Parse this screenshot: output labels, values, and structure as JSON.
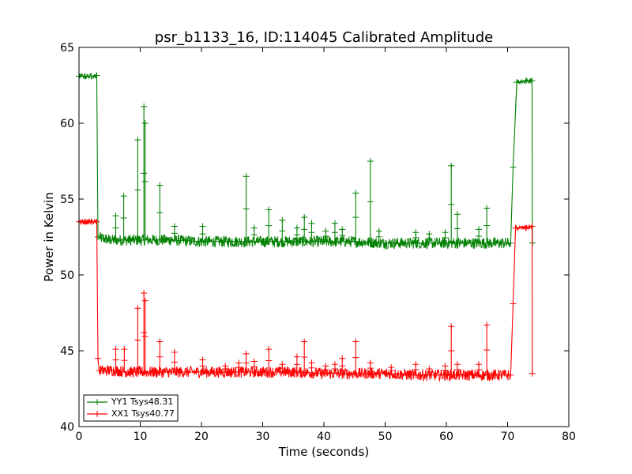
{
  "chart_data": {
    "type": "line",
    "title": "psr_b1133_16, ID:114045 Calibrated Amplitude",
    "xlabel": "Time (seconds)",
    "ylabel": "Power in Kelvin",
    "xlim": [
      0,
      80
    ],
    "ylim": [
      40,
      65
    ],
    "xticks": [
      0,
      10,
      20,
      30,
      40,
      50,
      60,
      70,
      80
    ],
    "yticks": [
      40,
      45,
      50,
      55,
      60,
      65
    ],
    "grid": false,
    "legend": "lower-left",
    "marker": "plus",
    "series": [
      {
        "name": "YY1 Tsys48.31",
        "color": "#008000",
        "x": [
          0,
          1,
          2,
          2.9,
          3.1,
          4,
          5,
          6,
          8,
          10,
          15,
          20,
          25,
          30,
          35,
          40,
          45,
          50,
          55,
          60,
          65,
          68,
          70.5,
          70.9,
          71.5,
          73,
          74,
          74.05
        ],
        "y": [
          63.1,
          63.1,
          63.1,
          63.15,
          52.5,
          52.4,
          52.3,
          52.3,
          52.3,
          52.3,
          52.3,
          52.2,
          52.2,
          52.2,
          52.2,
          52.2,
          52.2,
          52.1,
          52.1,
          52.1,
          52.1,
          52.1,
          52.1,
          57.1,
          62.7,
          62.8,
          62.8,
          52.1
        ],
        "spikes": [
          {
            "x": 6.0,
            "y": 53.9
          },
          {
            "x": 7.3,
            "y": 55.2
          },
          {
            "x": 9.6,
            "y": 58.9
          },
          {
            "x": 10.6,
            "y": 61.1
          },
          {
            "x": 10.8,
            "y": 60.0
          },
          {
            "x": 13.2,
            "y": 55.9
          },
          {
            "x": 15.6,
            "y": 53.2
          },
          {
            "x": 20.2,
            "y": 53.2
          },
          {
            "x": 27.3,
            "y": 56.5
          },
          {
            "x": 28.6,
            "y": 53.1
          },
          {
            "x": 31.0,
            "y": 54.3
          },
          {
            "x": 33.2,
            "y": 53.6
          },
          {
            "x": 35.6,
            "y": 53.1
          },
          {
            "x": 36.8,
            "y": 53.8
          },
          {
            "x": 38.0,
            "y": 53.4
          },
          {
            "x": 40.3,
            "y": 52.9
          },
          {
            "x": 41.8,
            "y": 53.4
          },
          {
            "x": 43.0,
            "y": 53.0
          },
          {
            "x": 45.2,
            "y": 55.4
          },
          {
            "x": 47.6,
            "y": 57.5
          },
          {
            "x": 49.0,
            "y": 52.9
          },
          {
            "x": 55.0,
            "y": 52.8
          },
          {
            "x": 57.2,
            "y": 52.7
          },
          {
            "x": 59.8,
            "y": 52.8
          },
          {
            "x": 60.8,
            "y": 57.2
          },
          {
            "x": 61.8,
            "y": 54.0
          },
          {
            "x": 65.3,
            "y": 53.0
          },
          {
            "x": 66.6,
            "y": 54.4
          }
        ]
      },
      {
        "name": "XX1 Tsys40.77",
        "color": "#ff0000",
        "x": [
          0,
          1,
          2,
          2.9,
          3.1,
          3.3,
          4,
          5,
          6,
          8,
          10,
          15,
          20,
          25,
          30,
          35,
          40,
          45,
          50,
          55,
          60,
          65,
          68,
          70.5,
          70.9,
          71.3,
          73,
          74,
          74.05
        ],
        "y": [
          53.5,
          53.5,
          53.5,
          53.5,
          44.5,
          43.7,
          43.7,
          43.7,
          43.7,
          43.6,
          43.6,
          43.6,
          43.6,
          43.6,
          43.6,
          43.6,
          43.5,
          43.5,
          43.5,
          43.4,
          43.4,
          43.4,
          43.4,
          43.4,
          48.1,
          53.1,
          53.1,
          53.2,
          43.5
        ],
        "spikes": [
          {
            "x": 6.0,
            "y": 45.1
          },
          {
            "x": 7.4,
            "y": 45.1
          },
          {
            "x": 9.6,
            "y": 47.8
          },
          {
            "x": 10.6,
            "y": 48.8
          },
          {
            "x": 10.8,
            "y": 48.3
          },
          {
            "x": 13.2,
            "y": 45.6
          },
          {
            "x": 15.6,
            "y": 44.9
          },
          {
            "x": 20.2,
            "y": 44.4
          },
          {
            "x": 23.9,
            "y": 44.0
          },
          {
            "x": 26.1,
            "y": 44.2
          },
          {
            "x": 27.3,
            "y": 44.8
          },
          {
            "x": 28.6,
            "y": 44.3
          },
          {
            "x": 31.0,
            "y": 45.1
          },
          {
            "x": 33.2,
            "y": 44.1
          },
          {
            "x": 35.6,
            "y": 44.6
          },
          {
            "x": 36.8,
            "y": 45.6
          },
          {
            "x": 38.0,
            "y": 44.2
          },
          {
            "x": 40.3,
            "y": 44.0
          },
          {
            "x": 41.8,
            "y": 44.1
          },
          {
            "x": 43.0,
            "y": 44.5
          },
          {
            "x": 45.2,
            "y": 45.6
          },
          {
            "x": 47.6,
            "y": 44.2
          },
          {
            "x": 51.0,
            "y": 43.9
          },
          {
            "x": 55.0,
            "y": 44.1
          },
          {
            "x": 57.2,
            "y": 43.8
          },
          {
            "x": 59.8,
            "y": 44.0
          },
          {
            "x": 60.8,
            "y": 46.6
          },
          {
            "x": 61.8,
            "y": 44.1
          },
          {
            "x": 65.3,
            "y": 44.1
          },
          {
            "x": 66.6,
            "y": 46.7
          }
        ]
      }
    ]
  }
}
